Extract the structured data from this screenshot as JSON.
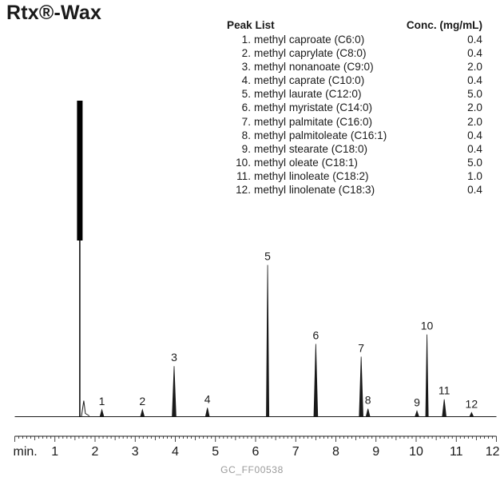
{
  "title": "Rtx®-Wax",
  "peak_list": {
    "header_name": "Peak List",
    "header_conc": "Conc. (mg/mL)",
    "items": [
      {
        "num": "1.",
        "name": "methyl caproate (C6:0)",
        "conc": "0.4"
      },
      {
        "num": "2.",
        "name": "methyl caprylate (C8:0)",
        "conc": "0.4"
      },
      {
        "num": "3.",
        "name": "methyl nonanoate (C9:0)",
        "conc": "2.0"
      },
      {
        "num": "4.",
        "name": "methyl caprate (C10:0)",
        "conc": "0.4"
      },
      {
        "num": "5.",
        "name": "methyl laurate (C12:0)",
        "conc": "5.0"
      },
      {
        "num": "6.",
        "name": "methyl myristate (C14:0)",
        "conc": "2.0"
      },
      {
        "num": "7.",
        "name": "methyl palmitate (C16:0)",
        "conc": "2.0"
      },
      {
        "num": "8.",
        "name": "methyl palmitoleate (C16:1)",
        "conc": "0.4"
      },
      {
        "num": "9.",
        "name": "methyl stearate (C18:0)",
        "conc": "0.4"
      },
      {
        "num": "10.",
        "name": "methyl oleate (C18:1)",
        "conc": "5.0"
      },
      {
        "num": "11.",
        "name": "methyl linoleate (C18:2)",
        "conc": "1.0"
      },
      {
        "num": "12.",
        "name": "methyl linolenate (C18:3)",
        "conc": "0.4"
      }
    ]
  },
  "chart_data": {
    "type": "line",
    "xlabel": "min.",
    "xlim": [
      0,
      12
    ],
    "ticks": [
      "1",
      "2",
      "3",
      "4",
      "5",
      "6",
      "7",
      "8",
      "9",
      "10",
      "11",
      "12"
    ],
    "solvent_peak": {
      "x": 1.62,
      "y": 1.0
    },
    "peaks": [
      {
        "label": "1",
        "x": 2.17,
        "y": 0.022
      },
      {
        "label": "2",
        "x": 3.18,
        "y": 0.022
      },
      {
        "label": "3",
        "x": 3.97,
        "y": 0.16
      },
      {
        "label": "4",
        "x": 4.8,
        "y": 0.028
      },
      {
        "label": "5",
        "x": 6.3,
        "y": 0.48
      },
      {
        "label": "6",
        "x": 7.5,
        "y": 0.23
      },
      {
        "label": "7",
        "x": 8.63,
        "y": 0.19
      },
      {
        "label": "8",
        "x": 8.8,
        "y": 0.025
      },
      {
        "label": "9",
        "x": 10.02,
        "y": 0.018
      },
      {
        "label": "10",
        "x": 10.27,
        "y": 0.26
      },
      {
        "label": "11",
        "x": 10.7,
        "y": 0.055
      },
      {
        "label": "12",
        "x": 11.38,
        "y": 0.013
      }
    ]
  },
  "footer": "GC_FF00538"
}
